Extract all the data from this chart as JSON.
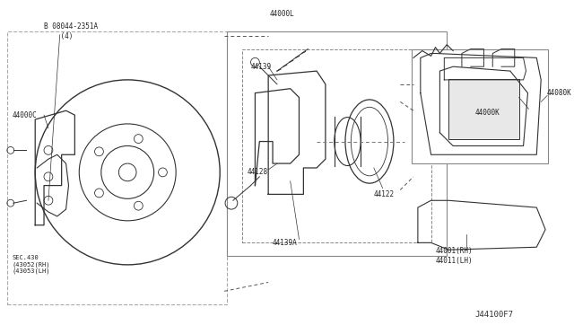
{
  "bg_color": "#ffffff",
  "fig_width": 6.4,
  "fig_height": 3.72,
  "dpi": 100,
  "title": "",
  "part_number": "J44100F7",
  "labels": {
    "bolt_label": "B 08044-2351A\n    (4)",
    "label_44000C": "44000C",
    "label_sec430": "SEC.430\n(43052(RH)\n(43053(LH)",
    "label_44139A": "44139A",
    "label_44128": "44128",
    "label_44139": "44139",
    "label_44122": "44122",
    "label_44000L": "44000L",
    "label_44000K": "44000K",
    "label_44080K": "44080K",
    "label_44001": "44001(RH)\n44011(LH)"
  },
  "line_color": "#333333",
  "box_color": "#555555",
  "dashed_color": "#555555"
}
